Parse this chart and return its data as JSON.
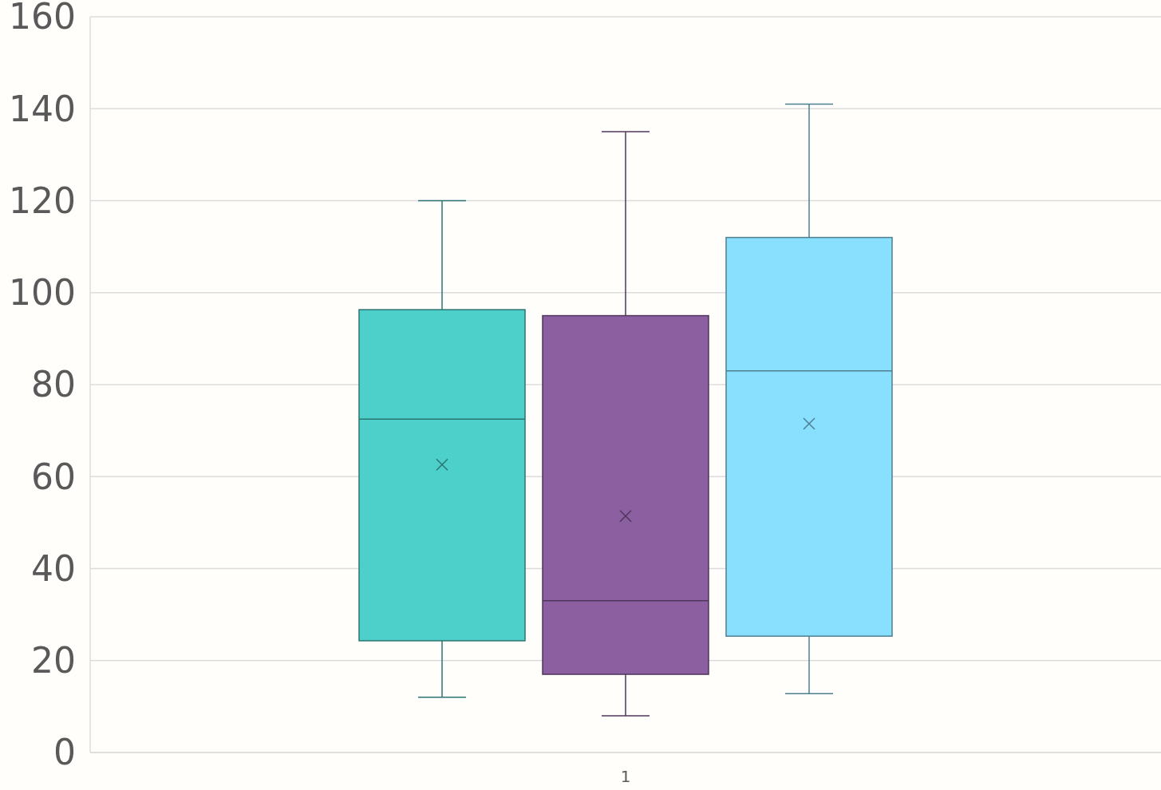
{
  "chart_data": {
    "type": "box",
    "categories": [
      "1"
    ],
    "ylim": [
      0,
      160
    ],
    "yticks": [
      0,
      20,
      40,
      60,
      80,
      100,
      120,
      140,
      160
    ],
    "grid": "y",
    "series": [
      {
        "color": "#4dcfca",
        "boxes": [
          {
            "low": 12,
            "q1": 24.3,
            "median": 72.5,
            "q3": 96.3,
            "high": 120,
            "mean": 62.6
          }
        ]
      },
      {
        "color": "#8b5fa0",
        "boxes": [
          {
            "low": 8,
            "q1": 17,
            "median": 33,
            "q3": 95,
            "high": 135,
            "mean": 51.4
          }
        ]
      },
      {
        "color": "#89e0fe",
        "boxes": [
          {
            "low": 12.8,
            "q1": 25.3,
            "median": 83,
            "q3": 112,
            "high": 141,
            "mean": 71.5
          }
        ]
      }
    ]
  }
}
